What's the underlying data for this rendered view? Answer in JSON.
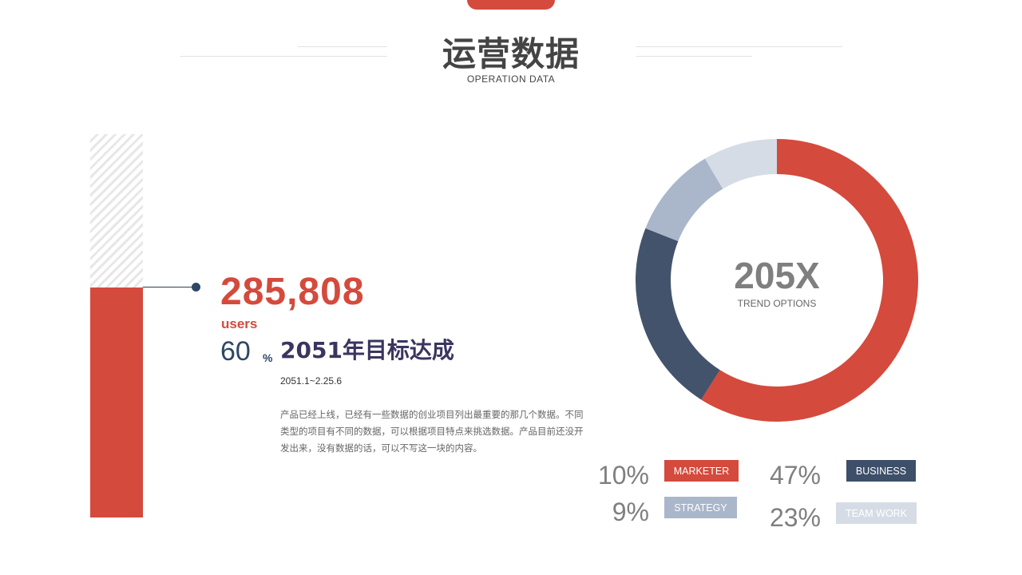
{
  "header": {
    "title": "运营数据",
    "subtitle": "OPERATION DATA"
  },
  "progress": {
    "value": 60,
    "number": "285,808",
    "unit": "users",
    "percent": "60",
    "percent_sign": "%",
    "goal_title": "2051年目标达成",
    "date_range": "2051.1~2.25.6",
    "description": "产品已经上线，已经有一些数据的创业项目列出最重要的那几个数据。不同类型的项目有不同的数据，可以根据项目特点来挑选数据。产品目前还没开发出来，没有数据的话，可以不写这一块的内容。"
  },
  "chart_data": {
    "type": "pie",
    "center_value": "205X",
    "center_label": "TREND OPTIONS",
    "slices": [
      {
        "label": "MARKETER",
        "value": 10,
        "display": "10%",
        "color": "#d44a3c"
      },
      {
        "label": "BUSINESS",
        "value": 47,
        "display": "47%",
        "color": "#3d4f69"
      },
      {
        "label": "STRATEGY",
        "value": 9,
        "display": "9%",
        "color": "#aab6c9"
      },
      {
        "label": "TEAM WORK",
        "value": 23,
        "display": "23%",
        "color": "#d6dce6"
      }
    ],
    "ring_segments": [
      {
        "color": "#d44a3c",
        "value": 59
      },
      {
        "color": "#43536c",
        "value": 22
      },
      {
        "color": "#aab6c9",
        "value": 10.5
      },
      {
        "color": "#d6dce6",
        "value": 8.5
      }
    ],
    "title": "",
    "xlabel": "",
    "ylabel": ""
  },
  "colors": {
    "accent": "#d44a3c",
    "navy": "#2d4766",
    "purple": "#3a3560"
  }
}
